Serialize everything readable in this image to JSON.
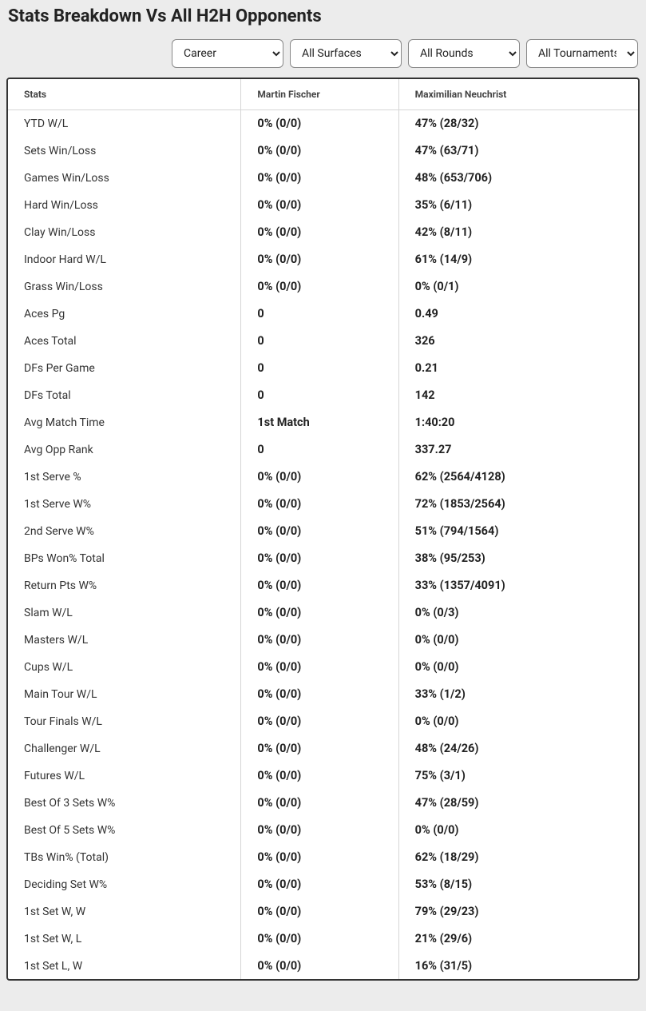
{
  "title": "Stats Breakdown Vs All H2H Opponents",
  "filters": {
    "period": {
      "selected": "Career",
      "options": [
        "Career"
      ]
    },
    "surface": {
      "selected": "All Surfaces",
      "options": [
        "All Surfaces"
      ]
    },
    "round": {
      "selected": "All Rounds",
      "options": [
        "All Rounds"
      ]
    },
    "tournament": {
      "selected": "All Tournaments",
      "options": [
        "All Tournaments"
      ]
    }
  },
  "table": {
    "columns": [
      "Stats",
      "Martin Fischer",
      "Maximilian Neuchrist"
    ],
    "rows": [
      [
        "YTD W/L",
        "0% (0/0)",
        "47% (28/32)"
      ],
      [
        "Sets Win/Loss",
        "0% (0/0)",
        "47% (63/71)"
      ],
      [
        "Games Win/Loss",
        "0% (0/0)",
        "48% (653/706)"
      ],
      [
        "Hard Win/Loss",
        "0% (0/0)",
        "35% (6/11)"
      ],
      [
        "Clay Win/Loss",
        "0% (0/0)",
        "42% (8/11)"
      ],
      [
        "Indoor Hard W/L",
        "0% (0/0)",
        "61% (14/9)"
      ],
      [
        "Grass Win/Loss",
        "0% (0/0)",
        "0% (0/1)"
      ],
      [
        "Aces Pg",
        "0",
        "0.49"
      ],
      [
        "Aces Total",
        "0",
        "326"
      ],
      [
        "DFs Per Game",
        "0",
        "0.21"
      ],
      [
        "DFs Total",
        "0",
        "142"
      ],
      [
        "Avg Match Time",
        "1st Match",
        "1:40:20"
      ],
      [
        "Avg Opp Rank",
        "0",
        "337.27"
      ],
      [
        "1st Serve %",
        "0% (0/0)",
        "62% (2564/4128)"
      ],
      [
        "1st Serve W%",
        "0% (0/0)",
        "72% (1853/2564)"
      ],
      [
        "2nd Serve W%",
        "0% (0/0)",
        "51% (794/1564)"
      ],
      [
        "BPs Won% Total",
        "0% (0/0)",
        "38% (95/253)"
      ],
      [
        "Return Pts W%",
        "0% (0/0)",
        "33% (1357/4091)"
      ],
      [
        "Slam W/L",
        "0% (0/0)",
        "0% (0/3)"
      ],
      [
        "Masters W/L",
        "0% (0/0)",
        "0% (0/0)"
      ],
      [
        "Cups W/L",
        "0% (0/0)",
        "0% (0/0)"
      ],
      [
        "Main Tour W/L",
        "0% (0/0)",
        "33% (1/2)"
      ],
      [
        "Tour Finals W/L",
        "0% (0/0)",
        "0% (0/0)"
      ],
      [
        "Challenger W/L",
        "0% (0/0)",
        "48% (24/26)"
      ],
      [
        "Futures W/L",
        "0% (0/0)",
        "75% (3/1)"
      ],
      [
        "Best Of 3 Sets W%",
        "0% (0/0)",
        "47% (28/59)"
      ],
      [
        "Best Of 5 Sets W%",
        "0% (0/0)",
        "0% (0/0)"
      ],
      [
        "TBs Win% (Total)",
        "0% (0/0)",
        "62% (18/29)"
      ],
      [
        "Deciding Set W%",
        "0% (0/0)",
        "53% (8/15)"
      ],
      [
        "1st Set W, W",
        "0% (0/0)",
        "79% (29/23)"
      ],
      [
        "1st Set W, L",
        "0% (0/0)",
        "21% (29/6)"
      ],
      [
        "1st Set L, W",
        "0% (0/0)",
        "16% (31/5)"
      ]
    ]
  },
  "colors": {
    "page_bg": "#ececec",
    "table_bg": "#ffffff",
    "border": "#333333",
    "grid": "#d6d6d6",
    "header_text": "#444444",
    "text": "#222222"
  }
}
